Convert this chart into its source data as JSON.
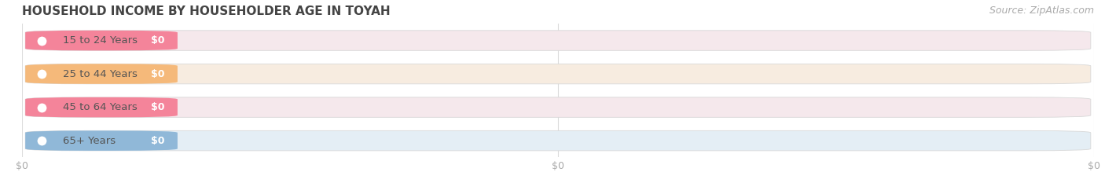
{
  "title": "HOUSEHOLD INCOME BY HOUSEHOLDER AGE IN TOYAH",
  "source": "Source: ZipAtlas.com",
  "categories": [
    "15 to 24 Years",
    "25 to 44 Years",
    "45 to 64 Years",
    "65+ Years"
  ],
  "values": [
    0,
    0,
    0,
    0
  ],
  "bar_colors": [
    "#f4849a",
    "#f5b97a",
    "#f4849a",
    "#90b8d8"
  ],
  "bar_bg_colors": [
    "#f5e8ec",
    "#f7ece0",
    "#f5e8ec",
    "#e4eef5"
  ],
  "dot_colors": [
    "#f4849a",
    "#f5b97a",
    "#f4849a",
    "#90b8d8"
  ],
  "tick_label_color": "#aaaaaa",
  "background_color": "#ffffff",
  "title_color": "#444444",
  "source_color": "#aaaaaa",
  "title_fontsize": 11,
  "tick_fontsize": 9,
  "source_fontsize": 9,
  "cat_fontsize": 9.5,
  "val_fontsize": 9
}
